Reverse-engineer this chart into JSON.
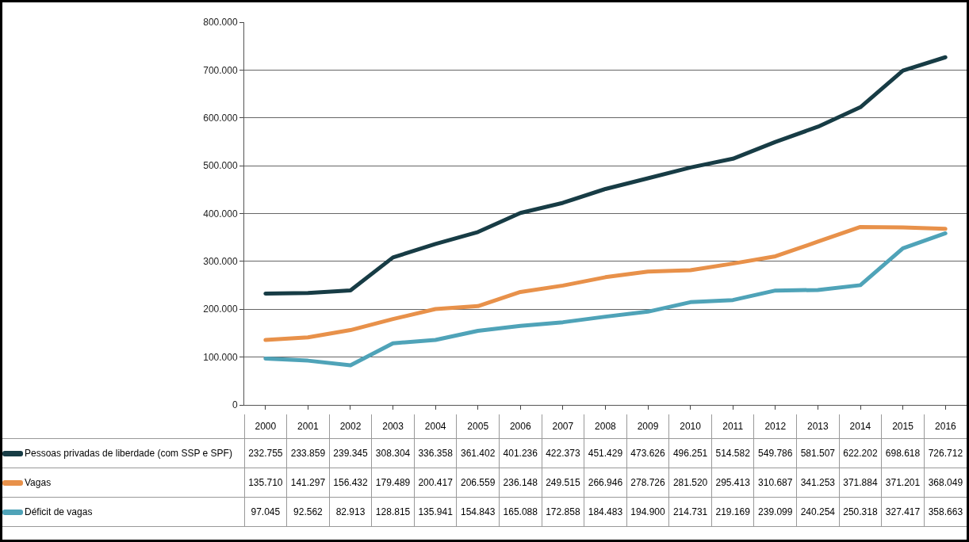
{
  "chart_data": {
    "type": "line",
    "categories": [
      "2000",
      "2001",
      "2002",
      "2003",
      "2004",
      "2005",
      "2006",
      "2007",
      "2008",
      "2009",
      "2010",
      "2011",
      "2012",
      "2013",
      "2014",
      "2015",
      "2016"
    ],
    "series": [
      {
        "name": "Pessoas privadas de liberdade (com SSP e SPF)",
        "color": "#173c45",
        "values": [
          232755,
          233859,
          239345,
          308304,
          336358,
          361402,
          401236,
          422373,
          451429,
          473626,
          496251,
          514582,
          549786,
          581507,
          622202,
          698618,
          726712
        ],
        "value_labels": [
          "232.755",
          "233.859",
          "239.345",
          "308.304",
          "336.358",
          "361.402",
          "401.236",
          "422.373",
          "451.429",
          "473.626",
          "496.251",
          "514.582",
          "549.786",
          "581.507",
          "622.202",
          "698.618",
          "726.712"
        ]
      },
      {
        "name": "Vagas",
        "color": "#e8914a",
        "values": [
          135710,
          141297,
          156432,
          179489,
          200417,
          206559,
          236148,
          249515,
          266946,
          278726,
          281520,
          295413,
          310687,
          341253,
          371884,
          371201,
          368049
        ],
        "value_labels": [
          "135.710",
          "141.297",
          "156.432",
          "179.489",
          "200.417",
          "206.559",
          "236.148",
          "249.515",
          "266.946",
          "278.726",
          "281.520",
          "295.413",
          "310.687",
          "341.253",
          "371.884",
          "371.201",
          "368.049"
        ]
      },
      {
        "name": "Déficit de vagas",
        "color": "#4fa3b8",
        "values": [
          97045,
          92562,
          82913,
          128815,
          135941,
          154843,
          165088,
          172858,
          184483,
          194900,
          214731,
          219169,
          239099,
          240254,
          250318,
          327417,
          358663
        ],
        "value_labels": [
          "97.045",
          "92.562",
          "82.913",
          "128.815",
          "135.941",
          "154.843",
          "165.088",
          "172.858",
          "184.483",
          "194.900",
          "214.731",
          "219.169",
          "239.099",
          "240.254",
          "250.318",
          "327.417",
          "358.663"
        ]
      }
    ],
    "ylim": [
      0,
      800000
    ],
    "yticks": [
      0,
      {
        "value": 100000,
        "label": "100.000"
      },
      {
        "value": 200000,
        "label": "200.000"
      },
      {
        "value": 300000,
        "label": "300.000"
      },
      {
        "value": 400000,
        "label": "400.000"
      },
      {
        "value": 500000,
        "label": "500.000"
      },
      {
        "value": 600000,
        "label": "600.000"
      },
      {
        "value": 700000,
        "label": "700.000"
      },
      {
        "value": 800000,
        "label": "800.000"
      }
    ],
    "grid": "y",
    "legend": "bottom",
    "marker": "none",
    "line_style": "solid"
  }
}
